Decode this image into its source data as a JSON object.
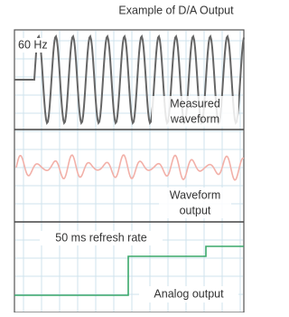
{
  "header": {
    "title": "Example of D/A Output"
  },
  "panels": [
    {
      "tag": "60 Hz",
      "label": [
        "Measured",
        "waveform"
      ]
    },
    {
      "label": [
        "Waveform",
        "output"
      ]
    },
    {
      "tag": "50 ms refresh rate",
      "label": [
        "Analog output"
      ]
    }
  ]
}
